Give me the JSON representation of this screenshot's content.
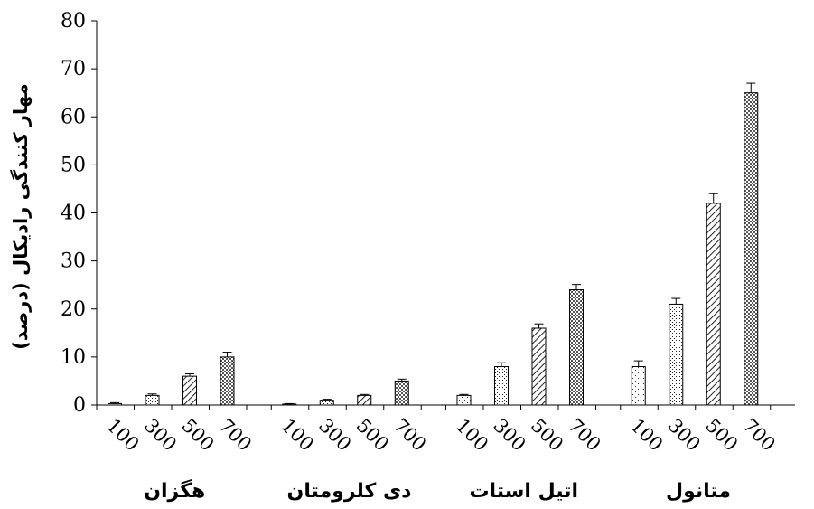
{
  "chart_data": {
    "type": "bar",
    "ylabel": "مهار کنندگی رادیکال (درصد)",
    "xlabel": "",
    "ylim": [
      0,
      80
    ],
    "y_ticks": [
      "0",
      "10",
      "20",
      "30",
      "40",
      "50",
      "60",
      "70",
      "80"
    ],
    "legend": "none",
    "grid": false,
    "sub_categories": [
      "100",
      "300",
      "500",
      "700"
    ],
    "groups": [
      {
        "label": "هگزان",
        "values": [
          0.3,
          2,
          6,
          10
        ],
        "errors": [
          0.2,
          0.3,
          0.5,
          1
        ]
      },
      {
        "label": "دی کلرومتان",
        "values": [
          0.2,
          1,
          2,
          5
        ],
        "errors": [
          0.1,
          0.2,
          0.2,
          0.4
        ]
      },
      {
        "label": "اتیل استات",
        "values": [
          2,
          8,
          16,
          24
        ],
        "errors": [
          0.2,
          0.8,
          0.9,
          1.1
        ]
      },
      {
        "label": "متانول",
        "values": [
          8,
          21,
          42,
          65
        ],
        "errors": [
          1.2,
          1.2,
          2,
          2
        ]
      }
    ],
    "bar_patterns": [
      "dots",
      "fine-dots",
      "diagonal",
      "crosshatch"
    ]
  }
}
